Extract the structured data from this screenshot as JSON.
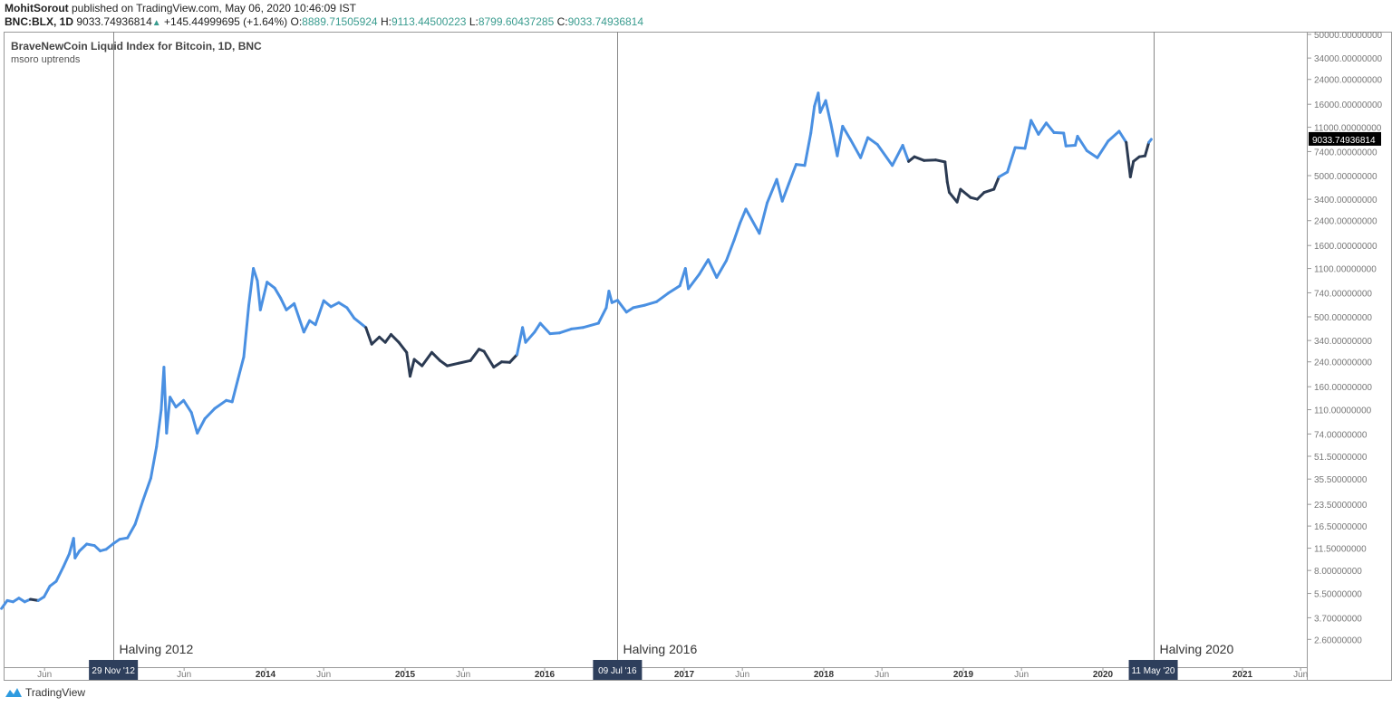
{
  "header": {
    "author": "MohitSorout",
    "published": "published on TradingView.com, May 06, 2020 10:46:09 IST",
    "symbol": "BNC:BLX, 1D",
    "last": "9033.74936814",
    "change": "+145.44999695 (+1.64%)",
    "o_label": "O:",
    "o": "8889.71505924",
    "h_label": "H:",
    "h": "9113.44500223",
    "l_label": "L:",
    "l": "8799.60437285",
    "c_label": "C:",
    "c": "9033.74936814"
  },
  "legend": {
    "title": "BraveNewCoin Liquid Index for Bitcoin, 1D, BNC",
    "indicator": "msoro uptrends"
  },
  "footer": {
    "brand": "TradingView"
  },
  "colors": {
    "uptrend": "#4a90e2",
    "downtrend": "#2b3a52",
    "marker_bg": "#2e3f5c",
    "price_label_bg": "#000000"
  },
  "chart_data": {
    "type": "line",
    "title": "BraveNewCoin Liquid Index for Bitcoin, 1D, BNC",
    "y_scale": "log",
    "ylim": [
      2.3,
      52000
    ],
    "xlim": [
      "2012-02-10",
      "2021-07-20"
    ],
    "grid": false,
    "current_price_label": "9033.74936814",
    "y_ticks": [
      "50000.00000000",
      "34000.00000000",
      "24000.00000000",
      "16000.00000000",
      "11000.00000000",
      "7400.00000000",
      "5000.00000000",
      "3400.00000000",
      "2400.00000000",
      "1600.00000000",
      "1100.00000000",
      "740.00000000",
      "500.00000000",
      "340.00000000",
      "240.00000000",
      "160.00000000",
      "110.00000000",
      "74.00000000",
      "51.50000000",
      "35.50000000",
      "23.50000000",
      "16.50000000",
      "11.50000000",
      "8.00000000",
      "5.50000000",
      "3.70000000",
      "2.60000000"
    ],
    "x_ticks": [
      {
        "date": "2012-06-01",
        "label": "Jun",
        "major": false
      },
      {
        "date": "2013-06-01",
        "label": "Jun",
        "major": false
      },
      {
        "date": "2014-01-01",
        "label": "2014",
        "major": true
      },
      {
        "date": "2014-06-01",
        "label": "Jun",
        "major": false
      },
      {
        "date": "2015-01-01",
        "label": "2015",
        "major": true
      },
      {
        "date": "2015-06-01",
        "label": "Jun",
        "major": false
      },
      {
        "date": "2016-01-01",
        "label": "2016",
        "major": true
      },
      {
        "date": "2017-01-01",
        "label": "2017",
        "major": true
      },
      {
        "date": "2017-06-01",
        "label": "Jun",
        "major": false
      },
      {
        "date": "2018-01-01",
        "label": "2018",
        "major": true
      },
      {
        "date": "2018-06-01",
        "label": "Jun",
        "major": false
      },
      {
        "date": "2019-01-01",
        "label": "2019",
        "major": true
      },
      {
        "date": "2019-06-01",
        "label": "Jun",
        "major": false
      },
      {
        "date": "2020-01-01",
        "label": "2020",
        "major": true
      },
      {
        "date": "2021-01-01",
        "label": "2021",
        "major": true
      },
      {
        "date": "2021-06-01",
        "label": "Jun",
        "major": false
      }
    ],
    "halvings": [
      {
        "date": "2012-11-29",
        "marker": "29 Nov '12",
        "label": "Halving 2012"
      },
      {
        "date": "2016-07-09",
        "marker": "09 Jul '16",
        "label": "Halving 2016"
      },
      {
        "date": "2020-05-11",
        "marker": "11 May '20",
        "label": "Halving 2020"
      }
    ],
    "downtrend_periods": [
      [
        "2012-04-20",
        "2012-05-20"
      ],
      [
        "2014-09-15",
        "2015-10-15"
      ],
      [
        "2018-08-10",
        "2019-04-05"
      ],
      [
        "2020-03-05",
        "2020-04-30"
      ]
    ],
    "series": [
      {
        "points": [
          [
            "2012-02-10",
            4.3
          ],
          [
            "2012-02-25",
            4.9
          ],
          [
            "2012-03-10",
            4.8
          ],
          [
            "2012-03-25",
            5.1
          ],
          [
            "2012-04-10",
            4.8
          ],
          [
            "2012-04-25",
            5.0
          ],
          [
            "2012-05-15",
            4.9
          ],
          [
            "2012-05-30",
            5.2
          ],
          [
            "2012-06-15",
            6.2
          ],
          [
            "2012-07-01",
            6.7
          ],
          [
            "2012-07-20",
            8.5
          ],
          [
            "2012-08-05",
            10.5
          ],
          [
            "2012-08-16",
            13.5
          ],
          [
            "2012-08-20",
            9.8
          ],
          [
            "2012-09-01",
            11.0
          ],
          [
            "2012-09-20",
            12.3
          ],
          [
            "2012-10-10",
            12.0
          ],
          [
            "2012-10-25",
            11.0
          ],
          [
            "2012-11-10",
            11.3
          ],
          [
            "2012-11-29",
            12.4
          ],
          [
            "2012-12-15",
            13.3
          ],
          [
            "2013-01-05",
            13.6
          ],
          [
            "2013-01-25",
            17.0
          ],
          [
            "2013-02-15",
            25.0
          ],
          [
            "2013-03-05",
            36.0
          ],
          [
            "2013-03-20",
            60.0
          ],
          [
            "2013-04-02",
            110.0
          ],
          [
            "2013-04-09",
            220.0
          ],
          [
            "2013-04-16",
            75.0
          ],
          [
            "2013-04-25",
            135.0
          ],
          [
            "2013-05-10",
            115.0
          ],
          [
            "2013-05-30",
            128.0
          ],
          [
            "2013-06-20",
            105.0
          ],
          [
            "2013-07-05",
            75.0
          ],
          [
            "2013-07-25",
            95.0
          ],
          [
            "2013-08-20",
            112.0
          ],
          [
            "2013-09-20",
            128.0
          ],
          [
            "2013-10-05",
            125.0
          ],
          [
            "2013-10-20",
            180.0
          ],
          [
            "2013-11-05",
            260.0
          ],
          [
            "2013-11-18",
            600.0
          ],
          [
            "2013-11-30",
            1100.0
          ],
          [
            "2013-12-10",
            900.0
          ],
          [
            "2013-12-18",
            560.0
          ],
          [
            "2014-01-05",
            880.0
          ],
          [
            "2014-01-25",
            800.0
          ],
          [
            "2014-02-10",
            680.0
          ],
          [
            "2014-02-25",
            560.0
          ],
          [
            "2014-03-15",
            620.0
          ],
          [
            "2014-04-10",
            390.0
          ],
          [
            "2014-04-25",
            470.0
          ],
          [
            "2014-05-10",
            440.0
          ],
          [
            "2014-06-01",
            650.0
          ],
          [
            "2014-06-20",
            590.0
          ],
          [
            "2014-07-10",
            630.0
          ],
          [
            "2014-08-01",
            580.0
          ],
          [
            "2014-08-20",
            490.0
          ],
          [
            "2014-09-20",
            420.0
          ],
          [
            "2014-10-05",
            320.0
          ],
          [
            "2014-10-25",
            360.0
          ],
          [
            "2014-11-10",
            330.0
          ],
          [
            "2014-11-25",
            375.0
          ],
          [
            "2014-12-15",
            330.0
          ],
          [
            "2015-01-05",
            280.0
          ],
          [
            "2015-01-14",
            190.0
          ],
          [
            "2015-01-25",
            250.0
          ],
          [
            "2015-02-15",
            225.0
          ],
          [
            "2015-03-10",
            280.0
          ],
          [
            "2015-04-01",
            245.0
          ],
          [
            "2015-04-20",
            225.0
          ],
          [
            "2015-05-20",
            235.0
          ],
          [
            "2015-06-20",
            245.0
          ],
          [
            "2015-07-12",
            295.0
          ],
          [
            "2015-07-25",
            285.0
          ],
          [
            "2015-08-20",
            220.0
          ],
          [
            "2015-09-10",
            240.0
          ],
          [
            "2015-10-01",
            238.0
          ],
          [
            "2015-10-20",
            270.0
          ],
          [
            "2015-11-04",
            420.0
          ],
          [
            "2015-11-12",
            330.0
          ],
          [
            "2015-12-05",
            390.0
          ],
          [
            "2015-12-20",
            450.0
          ],
          [
            "2016-01-15",
            380.0
          ],
          [
            "2016-02-10",
            385.0
          ],
          [
            "2016-03-10",
            410.0
          ],
          [
            "2016-04-10",
            420.0
          ],
          [
            "2016-05-20",
            450.0
          ],
          [
            "2016-06-10",
            580.0
          ],
          [
            "2016-06-17",
            760.0
          ],
          [
            "2016-06-25",
            630.0
          ],
          [
            "2016-07-09",
            655.0
          ],
          [
            "2016-08-02",
            540.0
          ],
          [
            "2016-08-20",
            580.0
          ],
          [
            "2016-09-20",
            605.0
          ],
          [
            "2016-10-20",
            640.0
          ],
          [
            "2016-11-20",
            735.0
          ],
          [
            "2016-12-20",
            830.0
          ],
          [
            "2017-01-04",
            1100.0
          ],
          [
            "2017-01-12",
            790.0
          ],
          [
            "2017-02-10",
            1000.0
          ],
          [
            "2017-03-03",
            1270.0
          ],
          [
            "2017-03-25",
            950.0
          ],
          [
            "2017-04-20",
            1250.0
          ],
          [
            "2017-05-10",
            1750.0
          ],
          [
            "2017-05-25",
            2300.0
          ],
          [
            "2017-06-10",
            2900.0
          ],
          [
            "2017-07-15",
            1950.0
          ],
          [
            "2017-08-05",
            3200.0
          ],
          [
            "2017-08-30",
            4700.0
          ],
          [
            "2017-09-14",
            3300.0
          ],
          [
            "2017-10-01",
            4400.0
          ],
          [
            "2017-10-20",
            6000.0
          ],
          [
            "2017-11-12",
            5900.0
          ],
          [
            "2017-11-28",
            10000.0
          ],
          [
            "2017-12-07",
            15500.0
          ],
          [
            "2017-12-17",
            19200.0
          ],
          [
            "2017-12-22",
            14000.0
          ],
          [
            "2018-01-06",
            17000.0
          ],
          [
            "2018-01-20",
            11500.0
          ],
          [
            "2018-02-06",
            6900.0
          ],
          [
            "2018-02-20",
            11200.0
          ],
          [
            "2018-03-10",
            9000.0
          ],
          [
            "2018-04-06",
            6700.0
          ],
          [
            "2018-04-25",
            9300.0
          ],
          [
            "2018-05-20",
            8300.0
          ],
          [
            "2018-06-28",
            5900.0
          ],
          [
            "2018-07-25",
            8200.0
          ],
          [
            "2018-08-10",
            6300.0
          ],
          [
            "2018-08-25",
            6800.0
          ],
          [
            "2018-09-20",
            6400.0
          ],
          [
            "2018-10-20",
            6450.0
          ],
          [
            "2018-11-14",
            6250.0
          ],
          [
            "2018-11-20",
            4500.0
          ],
          [
            "2018-11-25",
            3800.0
          ],
          [
            "2018-12-15",
            3250.0
          ],
          [
            "2018-12-24",
            4000.0
          ],
          [
            "2019-01-20",
            3500.0
          ],
          [
            "2019-02-07",
            3400.0
          ],
          [
            "2019-02-25",
            3800.0
          ],
          [
            "2019-03-20",
            4000.0
          ],
          [
            "2019-04-03",
            4900.0
          ],
          [
            "2019-04-25",
            5300.0
          ],
          [
            "2019-05-15",
            7900.0
          ],
          [
            "2019-06-10",
            7800.0
          ],
          [
            "2019-06-26",
            12300.0
          ],
          [
            "2019-07-15",
            9800.0
          ],
          [
            "2019-08-05",
            11800.0
          ],
          [
            "2019-08-25",
            10100.0
          ],
          [
            "2019-09-20",
            10000.0
          ],
          [
            "2019-09-26",
            8100.0
          ],
          [
            "2019-10-20",
            8200.0
          ],
          [
            "2019-10-26",
            9500.0
          ],
          [
            "2019-11-20",
            7500.0
          ],
          [
            "2019-12-17",
            6700.0
          ],
          [
            "2020-01-15",
            8800.0
          ],
          [
            "2020-02-13",
            10300.0
          ],
          [
            "2020-03-01",
            8600.0
          ],
          [
            "2020-03-12",
            4900.0
          ],
          [
            "2020-03-20",
            6300.0
          ],
          [
            "2020-04-05",
            6800.0
          ],
          [
            "2020-04-20",
            6900.0
          ],
          [
            "2020-04-30",
            8600.0
          ],
          [
            "2020-05-06",
            9033.74936814
          ]
        ]
      }
    ]
  }
}
